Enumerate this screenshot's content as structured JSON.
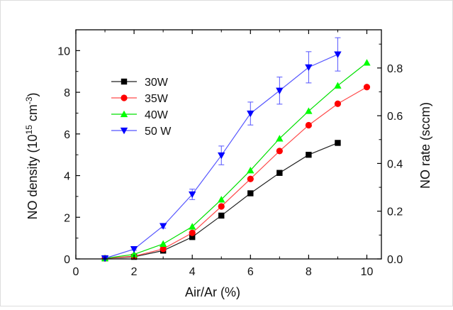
{
  "chart_data": {
    "type": "line",
    "title": "",
    "xlabel": "Air/Ar (%)",
    "ylabel_left": {
      "prefix": "NO density (10",
      "exp1": "15",
      "mid": " cm",
      "exp2": "-3",
      "suffix": ")"
    },
    "ylabel_right": "NO rate (sccm)",
    "xlim": [
      0,
      10.5
    ],
    "ylim_left": [
      0,
      11
    ],
    "ylim_right": [
      0,
      0.96
    ],
    "x_ticks": [
      "0",
      "2",
      "4",
      "6",
      "8",
      "10"
    ],
    "y_ticks_left": [
      "0",
      "2",
      "4",
      "6",
      "8",
      "10"
    ],
    "y_ticks_right": [
      "0.0",
      "0.2",
      "0.4",
      "0.6",
      "0.8"
    ],
    "grid": false,
    "legend_position": "upper-left",
    "series": [
      {
        "name": "30W",
        "marker": "square",
        "color": "#000000",
        "line_color": "#222222",
        "x": [
          1,
          2,
          3,
          4,
          5,
          6,
          7,
          8,
          9
        ],
        "values": [
          0.03,
          0.1,
          0.4,
          1.05,
          2.08,
          3.15,
          4.13,
          5.0,
          5.57
        ]
      },
      {
        "name": "35W",
        "marker": "circle",
        "color": "#ff0000",
        "line_color": "#ff4a4a",
        "x": [
          1,
          2,
          3,
          4,
          5,
          6,
          7,
          8,
          9,
          10
        ],
        "values": [
          0.03,
          0.13,
          0.48,
          1.25,
          2.52,
          3.84,
          5.18,
          6.42,
          7.45,
          8.25
        ]
      },
      {
        "name": "40W",
        "marker": "triangle-up",
        "color": "#00ff00",
        "line_color": "#00e000",
        "x": [
          1,
          2,
          3,
          4,
          5,
          6,
          7,
          8,
          9,
          10
        ],
        "values": [
          0.03,
          0.22,
          0.72,
          1.55,
          2.85,
          4.25,
          5.78,
          7.1,
          8.32,
          9.42
        ]
      },
      {
        "name": "50 W",
        "marker": "triangle-down",
        "color": "#0000ff",
        "line_color": "#5555ff",
        "x": [
          1,
          2,
          3,
          4,
          5,
          6,
          7,
          8,
          9
        ],
        "values": [
          0.03,
          0.47,
          1.58,
          3.1,
          4.97,
          6.98,
          8.08,
          9.2,
          9.82
        ],
        "errors": [
          0,
          0.05,
          0.1,
          0.25,
          0.45,
          0.55,
          0.65,
          0.75,
          0.8
        ]
      }
    ]
  }
}
